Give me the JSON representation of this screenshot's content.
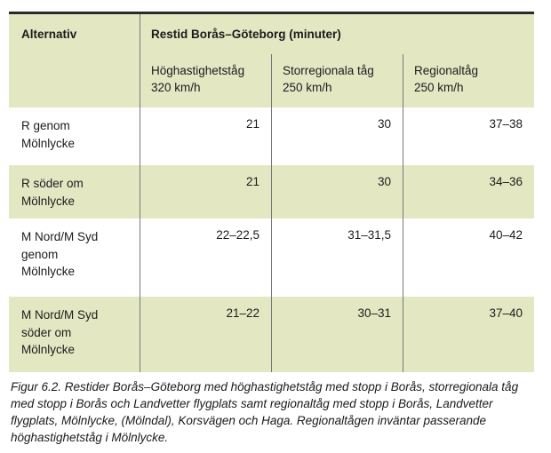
{
  "table": {
    "header": {
      "row_header_label": "Alternativ",
      "span_title": "Restid Borås–Göteborg (minuter)",
      "subcols": [
        "Höghastighetståg\n320 km/h",
        "Storregionala tåg\n250 km/h",
        "Regionaltåg\n250 km/h"
      ]
    },
    "rows": [
      {
        "label": "R genom\nMölnlycke",
        "values": [
          "21",
          "30",
          "37–38"
        ]
      },
      {
        "label": "R söder om\nMölnlycke",
        "values": [
          "21",
          "30",
          "34–36"
        ]
      },
      {
        "label": "M Nord/M Syd\ngenom\nMölnlycke",
        "values": [
          "22–22,5",
          "31–31,5",
          "40–42"
        ]
      },
      {
        "label": "M Nord/M Syd\nsöder om\nMölnlycke",
        "values": [
          "21–22",
          "30–31",
          "37–40"
        ]
      }
    ]
  },
  "caption": "Figur 6.2.  Restider Borås–Göteborg med höghastighetståg med stopp i Borås, storregionala tåg med stopp i Borås och Landvetter flygplats samt regionaltåg med stopp i Borås, Landvetter flygplats, Mölnlycke, (Mölndal), Korsvägen och Haga. Regionaltågen inväntar passerande höghastighetståg i Mölnlycke.",
  "colors": {
    "row_green": "#e3e8c3",
    "divider": "#77777a",
    "top_border": "#2a2a2a"
  }
}
